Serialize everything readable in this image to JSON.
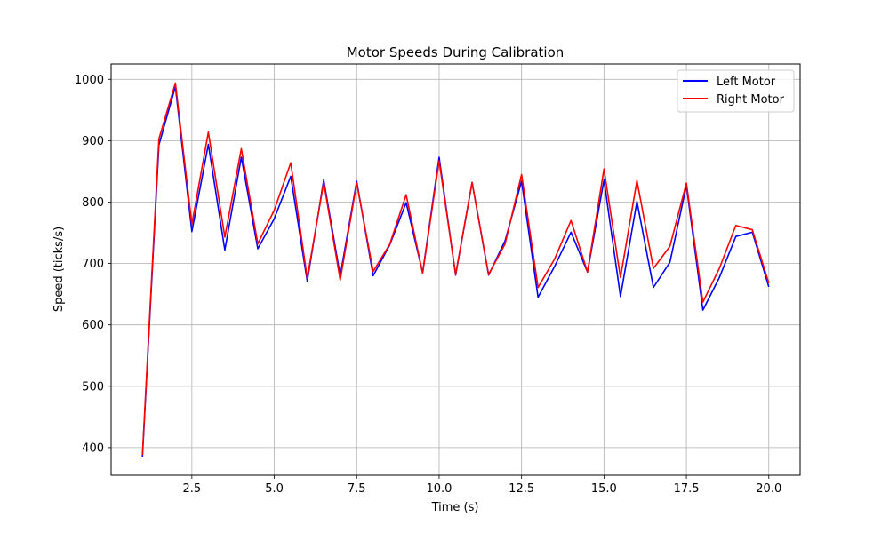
{
  "chart_data": {
    "type": "line",
    "title": "Motor Speeds During Calibration",
    "xlabel": "Time (s)",
    "ylabel": "Speed (ticks/s)",
    "xlim": [
      0.05,
      20.95
    ],
    "ylim": [
      355,
      1025
    ],
    "xticks": [
      2.5,
      5.0,
      7.5,
      10.0,
      12.5,
      15.0,
      17.5,
      20.0
    ],
    "xtick_labels": [
      "2.5",
      "5.0",
      "7.5",
      "10.0",
      "12.5",
      "15.0",
      "17.5",
      "20.0"
    ],
    "yticks": [
      400,
      500,
      600,
      700,
      800,
      900,
      1000
    ],
    "ytick_labels": [
      "400",
      "500",
      "600",
      "700",
      "800",
      "900",
      "1000"
    ],
    "grid": true,
    "legend_position": "top-right",
    "x": [
      1.0,
      1.5,
      2.0,
      2.5,
      3.0,
      3.5,
      4.0,
      4.5,
      5.0,
      5.5,
      6.0,
      6.5,
      7.0,
      7.5,
      8.0,
      8.5,
      9.0,
      9.5,
      10.0,
      10.5,
      11.0,
      11.5,
      12.0,
      12.5,
      13.0,
      13.5,
      14.0,
      14.5,
      15.0,
      15.5,
      16.0,
      16.5,
      17.0,
      17.5,
      18.0,
      18.5,
      19.0,
      19.5,
      20.0
    ],
    "series": [
      {
        "name": "Left Motor",
        "color": "#0000ff",
        "values": [
          385,
          893,
          988,
          752,
          894,
          722,
          873,
          724,
          773,
          842,
          671,
          836,
          680,
          834,
          680,
          730,
          799,
          685,
          873,
          681,
          832,
          681,
          737,
          834,
          645,
          695,
          751,
          686,
          836,
          646,
          801,
          661,
          702,
          827,
          624,
          677,
          744,
          751,
          662
        ]
      },
      {
        "name": "Right Motor",
        "color": "#ff0000",
        "values": [
          388,
          903,
          994,
          764,
          914,
          743,
          887,
          732,
          787,
          864,
          676,
          832,
          673,
          831,
          687,
          731,
          812,
          684,
          867,
          682,
          832,
          682,
          732,
          845,
          661,
          707,
          770,
          686,
          854,
          677,
          835,
          692,
          728,
          831,
          637,
          692,
          762,
          755,
          668
        ]
      }
    ]
  }
}
